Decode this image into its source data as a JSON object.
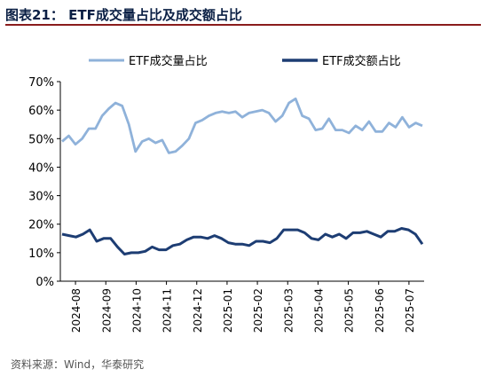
{
  "header": {
    "title": "图表21： ETF成交量占比及成交额占比"
  },
  "source": "资料来源：Wind，华泰研究",
  "chart_data": {
    "type": "line",
    "title": "",
    "xlabel": "",
    "ylabel": "",
    "ylim": [
      0,
      70
    ],
    "yticks": [
      "0%",
      "10%",
      "20%",
      "30%",
      "40%",
      "50%",
      "60%",
      "70%"
    ],
    "xticks": [
      "2024-08",
      "2024-09",
      "2024-10",
      "2024-11",
      "2024-12",
      "2025-01",
      "2025-02",
      "2025-03",
      "2025-04",
      "2025-05",
      "2025-06",
      "2025-07"
    ],
    "legend_position": "top",
    "series": [
      {
        "name": "ETF成交量占比",
        "color": "#8fb2da",
        "values": [
          49,
          51,
          48,
          50,
          53.5,
          53.5,
          58,
          60.5,
          62.5,
          61.5,
          55,
          45.5,
          49,
          50,
          48.5,
          49.5,
          45,
          45.5,
          47.5,
          50,
          55.5,
          56.5,
          58,
          59,
          59.5,
          59,
          59.5,
          57.5,
          59,
          59.5,
          60,
          59,
          56,
          58,
          62.5,
          64,
          58,
          57,
          53,
          53.5,
          57,
          53,
          53,
          52,
          54.5,
          53,
          56,
          52.5,
          52.5,
          55.5,
          54,
          57.5,
          54,
          55.5,
          54.5
        ]
      },
      {
        "name": "ETF成交额占比",
        "color": "#1d3d73",
        "values": [
          16.5,
          16,
          15.5,
          16.5,
          18,
          14,
          15,
          15,
          12,
          9.5,
          10,
          10,
          10.5,
          12,
          11,
          11,
          12.5,
          13,
          14.5,
          15.5,
          15.5,
          15,
          16,
          15,
          13.5,
          13,
          13,
          12.5,
          14,
          14,
          13.5,
          15,
          18,
          18,
          18,
          17,
          15,
          14.5,
          16.5,
          15.5,
          16.5,
          15,
          17,
          17,
          17.5,
          16.5,
          15.5,
          17.5,
          17.5,
          18.5,
          18,
          16.5,
          13
        ]
      }
    ]
  }
}
